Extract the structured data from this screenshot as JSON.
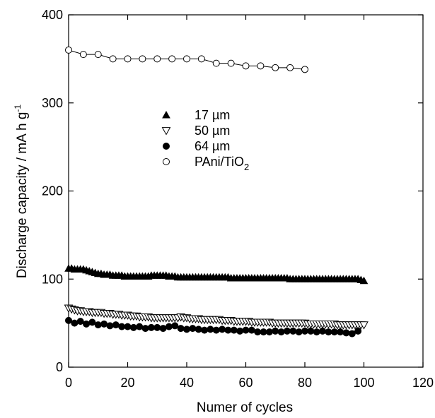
{
  "chart_data": {
    "type": "scatter",
    "title": "",
    "xlabel": "Numer of cycles",
    "ylabel_main": "Discharge capacity / mA h g",
    "ylabel_sup": "-1",
    "xlim": [
      0,
      120
    ],
    "ylim": [
      0,
      400
    ],
    "xticks": [
      "0",
      "20",
      "40",
      "60",
      "80",
      "100",
      "120"
    ],
    "yticks": [
      "0",
      "100",
      "200",
      "300",
      "400"
    ],
    "grid": false,
    "legend_position": "center-left",
    "series": [
      {
        "name": "17 µm",
        "name_main": "17 µm",
        "name_sub": "",
        "marker": "filled-triangle",
        "line": false,
        "x": [
          0,
          1,
          2,
          3,
          4,
          5,
          6,
          7,
          8,
          9,
          10,
          11,
          12,
          13,
          14,
          15,
          16,
          17,
          18,
          19,
          20,
          21,
          22,
          23,
          24,
          25,
          26,
          27,
          28,
          29,
          30,
          31,
          32,
          33,
          34,
          35,
          36,
          37,
          38,
          39,
          40,
          41,
          42,
          43,
          44,
          45,
          46,
          47,
          48,
          49,
          50,
          51,
          52,
          53,
          54,
          55,
          56,
          57,
          58,
          59,
          60,
          61,
          62,
          63,
          64,
          65,
          66,
          67,
          68,
          69,
          70,
          71,
          72,
          73,
          74,
          75,
          76,
          77,
          78,
          79,
          80,
          81,
          82,
          83,
          84,
          85,
          86,
          87,
          88,
          89,
          90,
          91,
          92,
          93,
          94,
          95,
          96,
          97,
          98,
          99,
          100
        ],
        "y": [
          112,
          112,
          111,
          111,
          111,
          111,
          110,
          109,
          108,
          107,
          106,
          106,
          105,
          105,
          105,
          104,
          104,
          104,
          104,
          103,
          103,
          103,
          103,
          103,
          103,
          103,
          103,
          103,
          104,
          104,
          104,
          104,
          104,
          104,
          103,
          103,
          103,
          102,
          102,
          102,
          102,
          102,
          102,
          102,
          102,
          102,
          102,
          102,
          102,
          102,
          102,
          102,
          102,
          102,
          102,
          101,
          101,
          101,
          101,
          101,
          101,
          101,
          101,
          101,
          101,
          101,
          101,
          101,
          101,
          101,
          101,
          101,
          101,
          101,
          101,
          100,
          100,
          100,
          100,
          100,
          100,
          100,
          100,
          100,
          100,
          100,
          100,
          100,
          100,
          100,
          100,
          100,
          100,
          100,
          100,
          100,
          100,
          100,
          100,
          99,
          98
        ]
      },
      {
        "name": "50 µm",
        "name_main": "50 µm",
        "name_sub": "",
        "marker": "open-triangle-down",
        "line": false,
        "x": [
          0,
          1,
          2,
          3,
          4,
          5,
          6,
          7,
          8,
          9,
          10,
          11,
          12,
          13,
          14,
          15,
          16,
          17,
          18,
          19,
          20,
          21,
          22,
          23,
          24,
          25,
          26,
          27,
          28,
          29,
          30,
          31,
          32,
          33,
          34,
          35,
          36,
          37,
          38,
          39,
          40,
          41,
          42,
          43,
          44,
          45,
          46,
          47,
          48,
          49,
          50,
          51,
          52,
          53,
          54,
          55,
          56,
          57,
          58,
          59,
          60,
          61,
          62,
          63,
          64,
          65,
          66,
          67,
          68,
          69,
          70,
          71,
          72,
          73,
          74,
          75,
          76,
          77,
          78,
          79,
          80,
          81,
          82,
          83,
          84,
          85,
          86,
          87,
          88,
          89,
          90,
          91,
          92,
          93,
          94,
          95,
          96,
          97,
          98,
          99,
          100
        ],
        "y": [
          67,
          66,
          65,
          64,
          64,
          63,
          63,
          63,
          62,
          62,
          62,
          62,
          61,
          61,
          61,
          60,
          60,
          60,
          59,
          59,
          59,
          58,
          58,
          58,
          57,
          57,
          57,
          57,
          56,
          56,
          56,
          56,
          56,
          56,
          56,
          56,
          56,
          56,
          57,
          56,
          56,
          55,
          55,
          55,
          55,
          54,
          54,
          54,
          54,
          54,
          54,
          54,
          53,
          53,
          53,
          53,
          52,
          52,
          52,
          52,
          52,
          52,
          51,
          51,
          51,
          51,
          51,
          51,
          51,
          50,
          50,
          50,
          50,
          50,
          50,
          50,
          50,
          50,
          50,
          50,
          50,
          49,
          49,
          49,
          49,
          49,
          49,
          49,
          49,
          49,
          49,
          48,
          48,
          48,
          48,
          48,
          48,
          48,
          48,
          48,
          48
        ]
      },
      {
        "name": "64 µm",
        "name_main": "64 µm",
        "name_sub": "",
        "marker": "filled-circle",
        "line": false,
        "x": [
          0,
          2,
          4,
          6,
          8,
          10,
          12,
          14,
          16,
          18,
          20,
          22,
          24,
          26,
          28,
          30,
          32,
          34,
          36,
          38,
          40,
          42,
          44,
          46,
          48,
          50,
          52,
          54,
          56,
          58,
          60,
          62,
          64,
          66,
          68,
          70,
          72,
          74,
          76,
          78,
          80,
          82,
          84,
          86,
          88,
          90,
          92,
          94,
          96,
          98
        ],
        "y": [
          53,
          50,
          52,
          49,
          51,
          48,
          49,
          47,
          48,
          46,
          46,
          45,
          46,
          44,
          45,
          45,
          44,
          46,
          47,
          44,
          43,
          44,
          43,
          42,
          43,
          42,
          43,
          42,
          42,
          41,
          42,
          42,
          40,
          40,
          40,
          41,
          40,
          41,
          41,
          40,
          41,
          41,
          40,
          41,
          40,
          40,
          40,
          39,
          38,
          41
        ]
      },
      {
        "name": "PAni/TiO2",
        "name_main": "PAni/TiO",
        "name_sub": "2",
        "marker": "open-circle",
        "line": true,
        "x": [
          0,
          5,
          10,
          15,
          20,
          25,
          30,
          35,
          40,
          45,
          50,
          55,
          60,
          65,
          70,
          75,
          80
        ],
        "y": [
          360,
          355,
          355,
          350,
          350,
          350,
          350,
          350,
          350,
          350,
          345,
          345,
          342,
          342,
          340,
          340,
          338
        ]
      }
    ]
  }
}
